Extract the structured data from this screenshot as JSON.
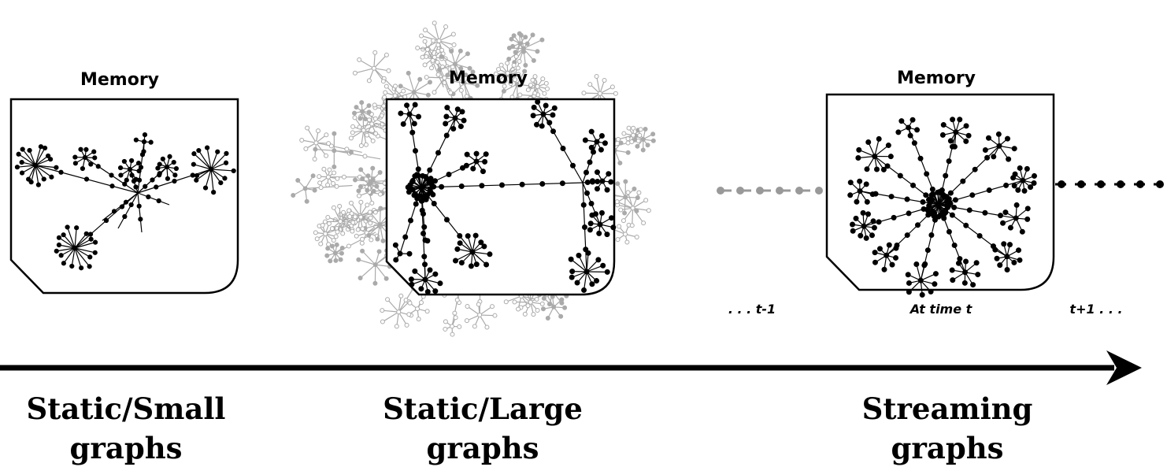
{
  "panels": [
    {
      "memory_label": "Memory",
      "caption": [
        "Static/Small",
        "graphs"
      ]
    },
    {
      "memory_label": "Memory",
      "caption": [
        "Static/Large",
        "graphs"
      ]
    },
    {
      "memory_label": "Memory",
      "caption": [
        "Streaming",
        "graphs"
      ]
    }
  ],
  "time_labels": {
    "previous": ". . . t-1",
    "current": "At time t",
    "next": "t+1 . . ."
  }
}
